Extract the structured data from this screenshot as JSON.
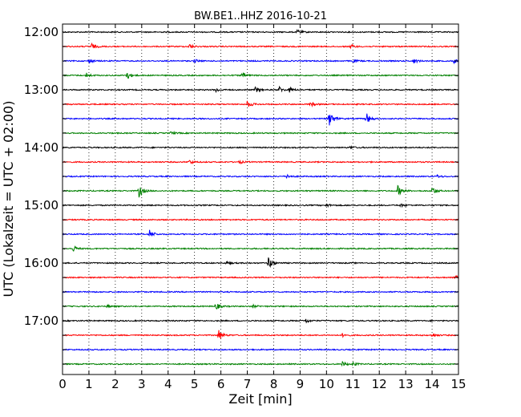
{
  "chart_data": {
    "type": "line",
    "title": "BW.BE1..HHZ 2016-10-21",
    "xlabel": "Zeit  [min]",
    "ylabel": "UTC (Lokalzeit = UTC + 02:00)",
    "xlim": [
      0,
      15
    ],
    "xticks": [
      "0",
      "1",
      "2",
      "3",
      "4",
      "5",
      "6",
      "7",
      "8",
      "9",
      "10",
      "11",
      "12",
      "13",
      "14",
      "15"
    ],
    "yticks": [
      "12:00",
      "13:00",
      "14:00",
      "15:00",
      "16:00",
      "17:00"
    ],
    "grid": "vertical dotted",
    "trace_colors": [
      "#000000",
      "#ff0000",
      "#0000ff",
      "#008000"
    ],
    "traces": [
      {
        "start": "12:00",
        "color": "#000000",
        "events": [
          [
            8.9,
            3
          ]
        ]
      },
      {
        "start": "12:15",
        "color": "#ff0000",
        "events": [
          [
            1.1,
            4
          ],
          [
            4.8,
            3
          ],
          [
            10.9,
            3
          ]
        ]
      },
      {
        "start": "12:30",
        "color": "#0000ff",
        "events": [
          [
            1.0,
            3
          ],
          [
            5.0,
            2
          ],
          [
            11.0,
            2
          ],
          [
            13.3,
            3
          ],
          [
            14.8,
            3
          ]
        ]
      },
      {
        "start": "12:45",
        "color": "#008000",
        "events": [
          [
            0.9,
            3
          ],
          [
            2.4,
            7
          ],
          [
            6.8,
            4
          ]
        ]
      },
      {
        "start": "13:00",
        "color": "#000000",
        "events": [
          [
            5.8,
            3
          ],
          [
            7.3,
            4
          ],
          [
            8.2,
            4
          ],
          [
            8.6,
            3
          ]
        ]
      },
      {
        "start": "13:15",
        "color": "#ff0000",
        "events": [
          [
            7.0,
            5
          ],
          [
            9.4,
            3
          ]
        ]
      },
      {
        "start": "13:30",
        "color": "#0000ff",
        "events": [
          [
            10.1,
            12
          ],
          [
            11.5,
            8
          ]
        ]
      },
      {
        "start": "13:45",
        "color": "#008000",
        "events": [
          [
            4.1,
            2
          ]
        ]
      },
      {
        "start": "14:00",
        "color": "#000000",
        "events": [
          [
            10.9,
            2
          ]
        ]
      },
      {
        "start": "14:15",
        "color": "#ff0000",
        "events": [
          [
            4.8,
            3
          ],
          [
            6.7,
            2
          ]
        ]
      },
      {
        "start": "14:30",
        "color": "#0000ff",
        "events": [
          [
            8.5,
            3
          ],
          [
            14.2,
            2
          ]
        ]
      },
      {
        "start": "14:45",
        "color": "#008000",
        "events": [
          [
            2.9,
            9
          ],
          [
            12.7,
            7
          ],
          [
            14.0,
            6
          ]
        ]
      },
      {
        "start": "15:00",
        "color": "#000000",
        "events": [
          [
            10.0,
            2
          ],
          [
            12.8,
            2
          ]
        ]
      },
      {
        "start": "15:15",
        "color": "#ff0000",
        "events": []
      },
      {
        "start": "15:30",
        "color": "#0000ff",
        "events": [
          [
            3.3,
            6
          ]
        ]
      },
      {
        "start": "15:45",
        "color": "#008000",
        "events": [
          [
            0.4,
            4
          ]
        ]
      },
      {
        "start": "16:00",
        "color": "#000000",
        "events": [
          [
            7.8,
            9
          ],
          [
            6.2,
            2
          ]
        ]
      },
      {
        "start": "16:15",
        "color": "#ff0000",
        "events": [
          [
            14.9,
            2
          ]
        ]
      },
      {
        "start": "16:30",
        "color": "#0000ff",
        "events": []
      },
      {
        "start": "16:45",
        "color": "#008000",
        "events": [
          [
            1.7,
            2
          ],
          [
            5.8,
            5
          ],
          [
            7.2,
            2
          ]
        ]
      },
      {
        "start": "17:00",
        "color": "#000000",
        "events": [
          [
            9.2,
            3
          ]
        ]
      },
      {
        "start": "17:15",
        "color": "#ff0000",
        "events": [
          [
            5.9,
            8
          ],
          [
            10.6,
            2
          ],
          [
            14.0,
            3
          ]
        ]
      },
      {
        "start": "17:30",
        "color": "#0000ff",
        "events": []
      },
      {
        "start": "17:45",
        "color": "#008000",
        "events": [
          [
            10.6,
            3
          ],
          [
            11.0,
            2
          ]
        ]
      }
    ]
  }
}
